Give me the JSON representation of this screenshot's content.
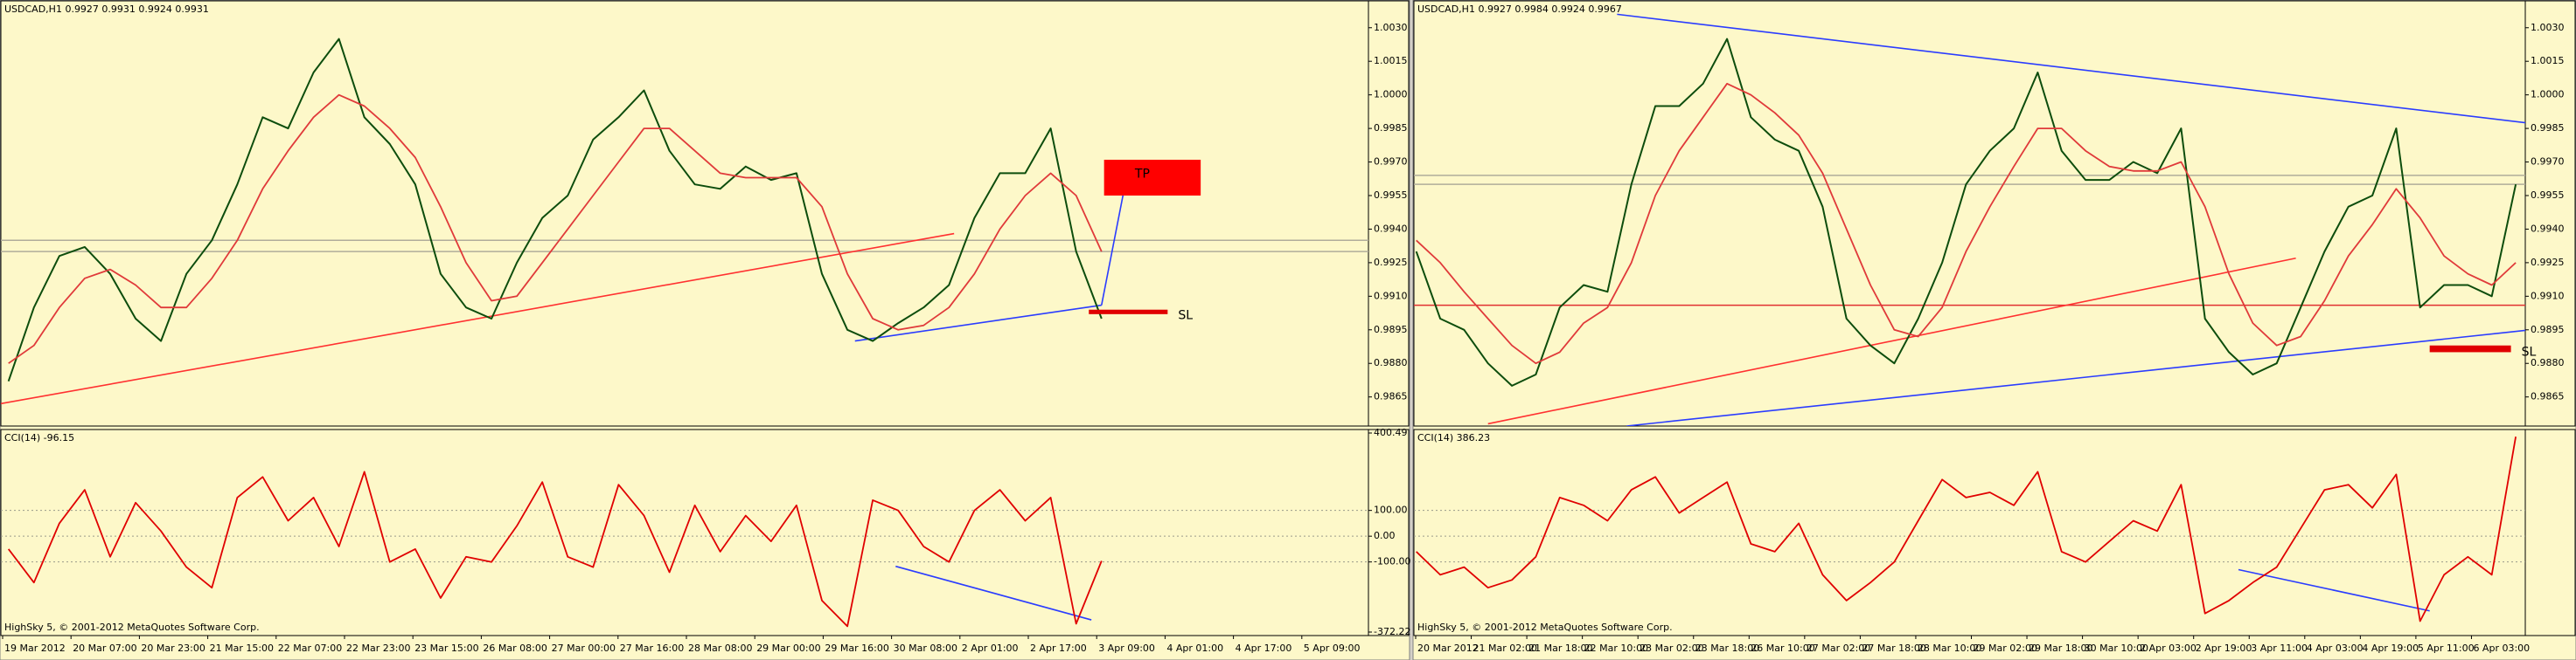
{
  "chart_data": [
    {
      "type": "line",
      "title": "USDCAD,H1  0.9927 0.9931 0.9924 0.9931",
      "xlim": [
        -0.3,
        53.5
      ],
      "ylim": [
        0.9852,
        1.0042
      ],
      "yticks": [
        {
          "value": 1.003,
          "label": "1.0030"
        },
        1.0015,
        {
          "value": 1.0,
          "label": "1.0000"
        },
        0.9985,
        {
          "value": 0.997,
          "label": "0.9970"
        },
        0.9955,
        {
          "value": 0.994,
          "label": "0.9940"
        },
        0.9925,
        {
          "value": 0.991,
          "label": "0.9910"
        },
        0.9895,
        {
          "value": 0.988,
          "label": "0.9880"
        },
        0.9865
      ],
      "series": [
        {
          "color": "#0d4d0d",
          "values": [
            0.9872,
            0.9905,
            0.9928,
            0.9932,
            0.992,
            0.99,
            0.989,
            0.992,
            0.9935,
            0.996,
            0.999,
            0.9985,
            1.001,
            1.0025,
            0.999,
            0.9978,
            0.996,
            0.992,
            0.9905,
            0.99,
            0.9925,
            0.9945,
            0.9955,
            0.998,
            0.999,
            1.0002,
            0.9975,
            0.996,
            0.9958,
            0.9968,
            0.9962,
            0.9965,
            0.992,
            0.9895,
            0.989,
            0.9898,
            0.9905,
            0.9915,
            0.9945,
            0.9965,
            0.9965,
            0.9985,
            0.993,
            0.99
          ]
        },
        {
          "color": "#e03a3a",
          "values": [
            0.988,
            0.9888,
            0.9905,
            0.9918,
            0.9922,
            0.9915,
            0.9905,
            0.9905,
            0.9918,
            0.9935,
            0.9958,
            0.9975,
            0.999,
            1.0,
            0.9995,
            0.9985,
            0.9972,
            0.995,
            0.9925,
            0.9908,
            0.991,
            0.9925,
            0.994,
            0.9955,
            0.997,
            0.9985,
            0.9985,
            0.9975,
            0.9965,
            0.9963,
            0.9963,
            0.9963,
            0.995,
            0.992,
            0.99,
            0.9895,
            0.9897,
            0.9905,
            0.992,
            0.994,
            0.9955,
            0.9965,
            0.9955,
            0.993
          ]
        }
      ],
      "hlines": [
        {
          "color": "#b0ad9a",
          "y": 0.9935
        },
        {
          "color": "#b0ad9a",
          "y": 0.993
        }
      ],
      "trendlines": [
        {
          "color": "#ff3030",
          "x": [
            -0.3,
            37.2
          ],
          "y": [
            0.9862,
            0.9938
          ]
        },
        {
          "color": "#2a3cff",
          "x": [
            33.3,
            43
          ],
          "y": [
            0.989,
            0.9906
          ]
        },
        {
          "color": "#2a3cff",
          "x": [
            43,
            44.1
          ],
          "y": [
            0.9906,
            0.997
          ]
        }
      ],
      "rects": [
        {
          "color": "#ff0000",
          "label": "TP",
          "label_color": "#ffd700",
          "x": [
            43.1,
            46.9
          ],
          "y": [
            0.9955,
            0.9971
          ]
        },
        {
          "color": "#e00000",
          "label": "SL",
          "label_color": "#e00000",
          "x": [
            42.5,
            45.6
          ],
          "y": [
            0.9902,
            0.9904
          ]
        }
      ]
    },
    {
      "type": "line",
      "title": "CCI(14) -96.15",
      "xlim": [
        -0.3,
        53.5
      ],
      "ylim": [
        -372.22,
        400.49
      ],
      "yticks": [
        400.49,
        {
          "value": 100,
          "label": "100.00"
        },
        {
          "value": 0,
          "label": "0.00"
        },
        {
          "value": -100,
          "label": "-100.00"
        },
        -372.22
      ],
      "levels": [
        100,
        0,
        -100
      ],
      "series": [
        {
          "color": "#e00000",
          "values": [
            -50,
            -180,
            50,
            180,
            -80,
            130,
            20,
            -120,
            -200,
            150,
            230,
            60,
            150,
            -40,
            250,
            -100,
            -50,
            -240,
            -80,
            -100,
            40,
            210,
            -80,
            -120,
            200,
            80,
            -140,
            120,
            -60,
            80,
            -20,
            120,
            -250,
            -350,
            140,
            100,
            -40,
            -100,
            100,
            180,
            60,
            150,
            -340,
            -96.15
          ]
        }
      ],
      "trendlines": [
        {
          "color": "#2a3cff",
          "x": [
            34.9,
            42.6
          ],
          "y": [
            -117,
            -325
          ]
        }
      ],
      "footer": "HighSky 5, © 2001-2012 MetaQuotes Software Corp.",
      "time_labels": [
        "19 Mar 2012",
        "20 Mar 07:00",
        "20 Mar 23:00",
        "21 Mar 15:00",
        "22 Mar 07:00",
        "22 Mar 23:00",
        "23 Mar 15:00",
        "26 Mar 08:00",
        "27 Mar 00:00",
        "27 Mar 16:00",
        "28 Mar 08:00",
        "29 Mar 00:00",
        "29 Mar 16:00",
        "30 Mar 08:00",
        "2 Apr 01:00",
        "2 Apr 17:00",
        "3 Apr 09:00",
        "4 Apr 01:00",
        "4 Apr 17:00",
        "5 Apr 09:00"
      ]
    },
    {
      "type": "line",
      "title": "USDCAD,H1  0.9927 0.9984 0.9924 0.9967",
      "xlim": [
        -0.1,
        46.4
      ],
      "ylim": [
        0.9852,
        1.0042
      ],
      "yticks": [
        {
          "value": 1.003,
          "label": "1.0030"
        },
        1.0015,
        {
          "value": 1.0,
          "label": "1.0000"
        },
        0.9985,
        {
          "value": 0.997,
          "label": "0.9970"
        },
        0.9955,
        {
          "value": 0.994,
          "label": "0.9940"
        },
        0.9925,
        {
          "value": 0.991,
          "label": "0.9910"
        },
        0.9895,
        {
          "value": 0.988,
          "label": "0.9880"
        },
        0.9865
      ],
      "series": [
        {
          "color": "#0d4d0d",
          "values": [
            0.993,
            0.99,
            0.9895,
            0.988,
            0.987,
            0.9875,
            0.9905,
            0.9915,
            0.9912,
            0.996,
            0.9995,
            0.9995,
            1.0005,
            1.0025,
            0.999,
            0.998,
            0.9975,
            0.995,
            0.99,
            0.9888,
            0.988,
            0.99,
            0.9925,
            0.996,
            0.9975,
            0.9985,
            1.001,
            0.9975,
            0.9962,
            0.9962,
            0.997,
            0.9965,
            0.9985,
            0.99,
            0.9885,
            0.9875,
            0.988,
            0.9905,
            0.993,
            0.995,
            0.9955,
            0.9985,
            0.9905,
            0.9915,
            0.9915,
            0.991,
            0.996
          ]
        },
        {
          "color": "#e03a3a",
          "values": [
            0.9935,
            0.9925,
            0.9912,
            0.99,
            0.9888,
            0.988,
            0.9885,
            0.9898,
            0.9905,
            0.9925,
            0.9955,
            0.9975,
            0.999,
            1.0005,
            1.0,
            0.9992,
            0.9982,
            0.9965,
            0.994,
            0.9915,
            0.9895,
            0.9892,
            0.9905,
            0.993,
            0.995,
            0.9968,
            0.9985,
            0.9985,
            0.9975,
            0.9968,
            0.9966,
            0.9966,
            0.997,
            0.995,
            0.992,
            0.9898,
            0.9888,
            0.9892,
            0.9908,
            0.9928,
            0.9942,
            0.9958,
            0.9945,
            0.9928,
            0.992,
            0.9915,
            0.9925
          ]
        }
      ],
      "hlines": [
        {
          "color": "#b0ad9a",
          "y": 0.9964
        },
        {
          "color": "#b0ad9a",
          "y": 0.996
        },
        {
          "color": "#e03030",
          "y": 0.9906
        }
      ],
      "trendlines": [
        {
          "color": "#2a3cff",
          "x": [
            8.4,
            48.4
          ],
          "y": [
            1.0036,
            0.9985
          ]
        },
        {
          "color": "#2a3cff",
          "x": [
            8.8,
            48.4
          ],
          "y": [
            0.9852,
            0.9897
          ]
        },
        {
          "color": "#ff3030",
          "x": [
            3,
            36.8
          ],
          "y": [
            0.9853,
            0.9927
          ]
        }
      ],
      "rects": [
        {
          "color": "#e00000",
          "label": "SL",
          "label_color": "#e00000",
          "x": [
            42.4,
            45.8
          ],
          "y": [
            0.9885,
            0.9888
          ]
        }
      ]
    },
    {
      "type": "line",
      "title": "CCI(14) 386.23",
      "xlim": [
        -0.1,
        46.4
      ],
      "ylim": [
        -372.22,
        400.49
      ],
      "levels": [
        100,
        0,
        -100
      ],
      "series": [
        {
          "color": "#e00000",
          "values": [
            -60,
            -150,
            -120,
            -200,
            -170,
            -80,
            150,
            120,
            60,
            180,
            230,
            90,
            150,
            210,
            -30,
            -60,
            50,
            -150,
            -250,
            -180,
            -100,
            60,
            220,
            150,
            170,
            120,
            250,
            -60,
            -100,
            -20,
            60,
            20,
            200,
            -300,
            -250,
            -180,
            -120,
            30,
            180,
            200,
            110,
            240,
            -330,
            -150,
            -80,
            -150,
            386.23
          ]
        }
      ],
      "trendlines": [
        {
          "color": "#2a3cff",
          "x": [
            34.4,
            42.4
          ],
          "y": [
            -130,
            -290
          ]
        }
      ],
      "footer": "HighSky 5, © 2001-2012 MetaQuotes Software Corp.",
      "time_labels": [
        "20 Mar 2012",
        "21 Mar 02:00",
        "21 Mar 18:00",
        "22 Mar 10:00",
        "23 Mar 02:00",
        "23 Mar 18:00",
        "26 Mar 10:00",
        "27 Mar 02:00",
        "27 Mar 18:00",
        "28 Mar 10:00",
        "29 Mar 02:00",
        "29 Mar 18:00",
        "30 Mar 10:00",
        "2 Apr 03:00",
        "2 Apr 19:00",
        "3 Apr 11:00",
        "4 Apr 03:00",
        "4 Apr 19:00",
        "5 Apr 11:00",
        "6 Apr 03:00"
      ]
    }
  ]
}
